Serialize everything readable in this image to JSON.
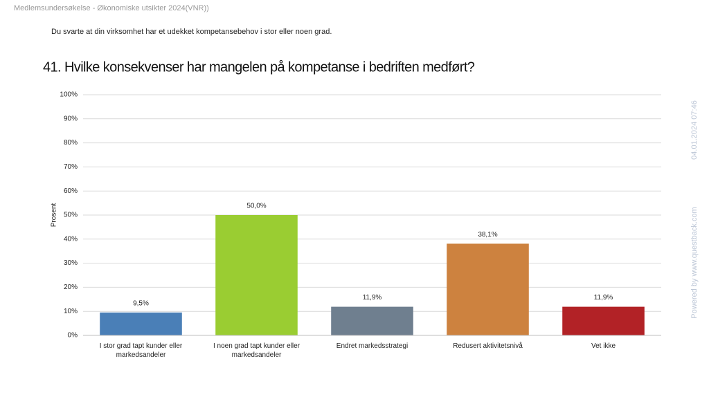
{
  "header": "Medlemsundersøkelse - Økonomiske utsikter 2024(VNR))",
  "intro": "Du svarte at din virksomhet har et udekket kompetansebehov i stor eller noen grad.",
  "side": [
    "Powered by www.questback.com",
    "04.01.2024 07:46"
  ],
  "chart_data": {
    "type": "bar",
    "title": "41. Hvilke konsekvenser har mangelen på kompetanse i bedriften medført?",
    "ylabel": "Prosent",
    "categories": [
      "I stor grad tapt kunder eller markedsandeler",
      "I noen grad tapt kunder eller markedsandeler",
      "Endret markedsstrategi",
      "Redusert aktivitetsnivå",
      "Vet ikke"
    ],
    "values": [
      9.5,
      50.0,
      11.9,
      38.1,
      11.9
    ],
    "value_labels": [
      "9,5%",
      "50,0%",
      "11,9%",
      "38,1%",
      "11,9%"
    ],
    "colors": [
      "#4a7fb7",
      "#9acd32",
      "#6f7f8f",
      "#cd823f",
      "#b22226"
    ],
    "ylim": [
      0,
      100
    ],
    "yticks": [
      {
        "value": 0,
        "label": "0%"
      },
      {
        "value": 10,
        "label": "10%"
      },
      {
        "value": 20,
        "label": "20%"
      },
      {
        "value": 30,
        "label": "30%"
      },
      {
        "value": 40,
        "label": "40%"
      },
      {
        "value": 50,
        "label": "50%"
      },
      {
        "value": 60,
        "label": "60%"
      },
      {
        "value": 70,
        "label": "70%"
      },
      {
        "value": 80,
        "label": "80%"
      },
      {
        "value": 90,
        "label": "90%"
      },
      {
        "value": 100,
        "label": "100%"
      }
    ],
    "grid": true
  }
}
